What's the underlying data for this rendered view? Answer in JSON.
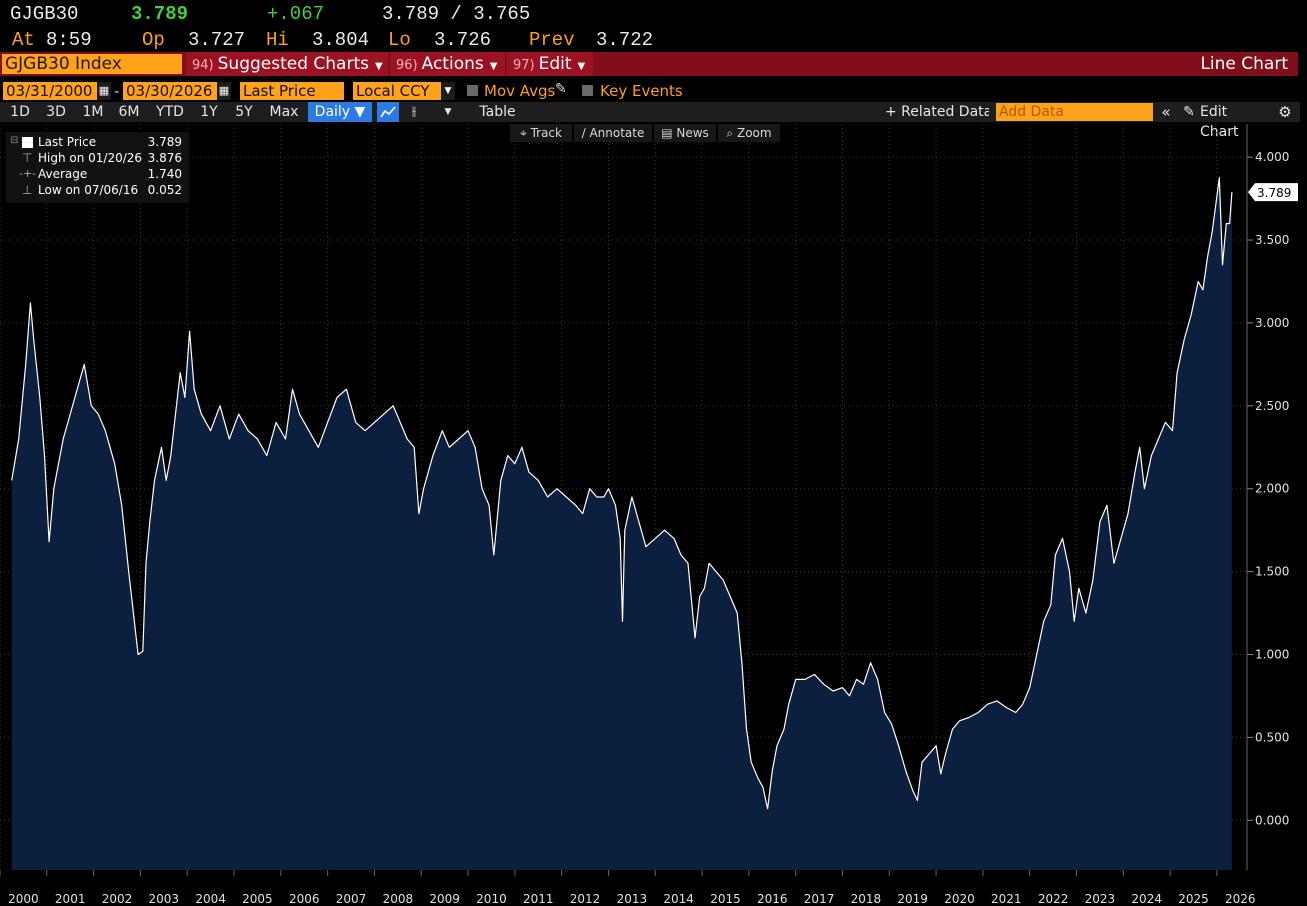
{
  "header": {
    "ticker": "GJGB30",
    "last": "3.789",
    "change": "+.067",
    "bid_ask": "3.789 / 3.765",
    "time_label": "At",
    "time": "8:59",
    "open_label": "Op",
    "open": "3.727",
    "high_label": "Hi",
    "high": "3.804",
    "low_label": "Lo",
    "low": "3.726",
    "prev_label": "Prev",
    "prev": "3.722"
  },
  "command_bar": {
    "security": "GJGB30 Index",
    "menus": [
      {
        "num": "94)",
        "label": "Suggested Charts"
      },
      {
        "num": "96)",
        "label": "Actions"
      },
      {
        "num": "97)",
        "label": "Edit"
      }
    ],
    "view_label": "Line Chart"
  },
  "date_row": {
    "start": "03/31/2000",
    "end": "03/30/2026",
    "field": "Last Price",
    "currency": "Local CCY",
    "mov_avgs": "Mov Avgs",
    "key_events": "Key Events"
  },
  "toolbar": {
    "ranges": [
      "1D",
      "3D",
      "1M",
      "6M",
      "YTD",
      "1Y",
      "5Y",
      "Max"
    ],
    "frequency": "Daily ▼",
    "table": "Table",
    "related": "+ Related Data",
    "add_data_placeholder": "Add Data",
    "edit_chart": "Edit Chart"
  },
  "chart_tools": [
    "Track",
    "Annotate",
    "News",
    "Zoom"
  ],
  "legend": {
    "rows": [
      {
        "name": "Last Price",
        "value": "3.789"
      },
      {
        "name": "High on 01/20/26",
        "value": "3.876"
      },
      {
        "name": "Average",
        "value": "1.740"
      },
      {
        "name": "Low on 07/06/16",
        "value": "0.052"
      }
    ]
  },
  "colors": {
    "background": "#000000",
    "area_fill": "#0b1f3f",
    "line": "#ffffff",
    "accent": "#ffa21b",
    "command_bar": "#7f0f1b"
  },
  "chart_data": {
    "type": "area",
    "ylim": [
      -0.3,
      4.2
    ],
    "xlim": [
      2000.0,
      2026.6
    ],
    "y_ticks": [
      "0.000",
      "0.500",
      "1.000",
      "1.500",
      "2.000",
      "2.500",
      "3.000",
      "3.500",
      "4.000"
    ],
    "x_ticks": [
      "2000",
      "2001",
      "2002",
      "2003",
      "2004",
      "2005",
      "2006",
      "2007",
      "2008",
      "2009",
      "2010",
      "2011",
      "2012",
      "2013",
      "2014",
      "2015",
      "2016",
      "2017",
      "2018",
      "2019",
      "2020",
      "2021",
      "2022",
      "2023",
      "2024",
      "2025",
      "2026"
    ],
    "last_value_label": "3.789",
    "grid": "horizontal and vertical dotted",
    "legend_position": "top-left",
    "series": [
      {
        "name": "Last Price",
        "points": [
          [
            2000.25,
            2.05
          ],
          [
            2000.4,
            2.3
          ],
          [
            2000.55,
            2.75
          ],
          [
            2000.65,
            3.12
          ],
          [
            2000.72,
            2.9
          ],
          [
            2000.85,
            2.55
          ],
          [
            2000.95,
            2.2
          ],
          [
            2001.05,
            1.68
          ],
          [
            2001.15,
            2.0
          ],
          [
            2001.35,
            2.3
          ],
          [
            2001.6,
            2.55
          ],
          [
            2001.8,
            2.75
          ],
          [
            2001.95,
            2.5
          ],
          [
            2002.1,
            2.45
          ],
          [
            2002.25,
            2.35
          ],
          [
            2002.45,
            2.15
          ],
          [
            2002.6,
            1.9
          ],
          [
            2002.75,
            1.5
          ],
          [
            2002.85,
            1.25
          ],
          [
            2002.95,
            1.0
          ],
          [
            2003.05,
            1.02
          ],
          [
            2003.12,
            1.55
          ],
          [
            2003.2,
            1.8
          ],
          [
            2003.3,
            2.05
          ],
          [
            2003.45,
            2.25
          ],
          [
            2003.55,
            2.05
          ],
          [
            2003.65,
            2.2
          ],
          [
            2003.75,
            2.45
          ],
          [
            2003.85,
            2.7
          ],
          [
            2003.95,
            2.55
          ],
          [
            2004.05,
            2.95
          ],
          [
            2004.15,
            2.6
          ],
          [
            2004.3,
            2.45
          ],
          [
            2004.5,
            2.35
          ],
          [
            2004.7,
            2.5
          ],
          [
            2004.9,
            2.3
          ],
          [
            2005.1,
            2.45
          ],
          [
            2005.3,
            2.35
          ],
          [
            2005.5,
            2.3
          ],
          [
            2005.7,
            2.2
          ],
          [
            2005.9,
            2.4
          ],
          [
            2006.1,
            2.3
          ],
          [
            2006.25,
            2.6
          ],
          [
            2006.4,
            2.45
          ],
          [
            2006.6,
            2.35
          ],
          [
            2006.8,
            2.25
          ],
          [
            2007.0,
            2.4
          ],
          [
            2007.2,
            2.55
          ],
          [
            2007.4,
            2.6
          ],
          [
            2007.6,
            2.4
          ],
          [
            2007.8,
            2.35
          ],
          [
            2008.0,
            2.4
          ],
          [
            2008.2,
            2.45
          ],
          [
            2008.4,
            2.5
          ],
          [
            2008.55,
            2.4
          ],
          [
            2008.7,
            2.3
          ],
          [
            2008.85,
            2.25
          ],
          [
            2008.95,
            1.85
          ],
          [
            2009.05,
            2.0
          ],
          [
            2009.25,
            2.2
          ],
          [
            2009.45,
            2.35
          ],
          [
            2009.6,
            2.25
          ],
          [
            2009.8,
            2.3
          ],
          [
            2010.0,
            2.35
          ],
          [
            2010.15,
            2.25
          ],
          [
            2010.3,
            2.0
          ],
          [
            2010.45,
            1.9
          ],
          [
            2010.55,
            1.6
          ],
          [
            2010.7,
            2.05
          ],
          [
            2010.85,
            2.2
          ],
          [
            2011.0,
            2.15
          ],
          [
            2011.15,
            2.25
          ],
          [
            2011.3,
            2.1
          ],
          [
            2011.5,
            2.05
          ],
          [
            2011.7,
            1.95
          ],
          [
            2011.9,
            2.0
          ],
          [
            2012.1,
            1.95
          ],
          [
            2012.3,
            1.9
          ],
          [
            2012.45,
            1.85
          ],
          [
            2012.6,
            2.0
          ],
          [
            2012.75,
            1.95
          ],
          [
            2012.9,
            1.95
          ],
          [
            2013.0,
            2.0
          ],
          [
            2013.15,
            1.9
          ],
          [
            2013.25,
            1.7
          ],
          [
            2013.3,
            1.2
          ],
          [
            2013.35,
            1.75
          ],
          [
            2013.5,
            1.95
          ],
          [
            2013.65,
            1.8
          ],
          [
            2013.8,
            1.65
          ],
          [
            2014.0,
            1.7
          ],
          [
            2014.2,
            1.75
          ],
          [
            2014.4,
            1.7
          ],
          [
            2014.55,
            1.6
          ],
          [
            2014.7,
            1.55
          ],
          [
            2014.85,
            1.1
          ],
          [
            2014.95,
            1.35
          ],
          [
            2015.05,
            1.4
          ],
          [
            2015.15,
            1.55
          ],
          [
            2015.3,
            1.5
          ],
          [
            2015.45,
            1.45
          ],
          [
            2015.6,
            1.35
          ],
          [
            2015.75,
            1.25
          ],
          [
            2015.85,
            0.95
          ],
          [
            2015.95,
            0.55
          ],
          [
            2016.05,
            0.35
          ],
          [
            2016.2,
            0.25
          ],
          [
            2016.3,
            0.2
          ],
          [
            2016.4,
            0.07
          ],
          [
            2016.5,
            0.3
          ],
          [
            2016.6,
            0.45
          ],
          [
            2016.75,
            0.55
          ],
          [
            2016.85,
            0.7
          ],
          [
            2017.0,
            0.85
          ],
          [
            2017.2,
            0.85
          ],
          [
            2017.4,
            0.88
          ],
          [
            2017.6,
            0.82
          ],
          [
            2017.8,
            0.78
          ],
          [
            2018.0,
            0.8
          ],
          [
            2018.15,
            0.75
          ],
          [
            2018.3,
            0.85
          ],
          [
            2018.45,
            0.82
          ],
          [
            2018.6,
            0.95
          ],
          [
            2018.75,
            0.85
          ],
          [
            2018.9,
            0.65
          ],
          [
            2019.05,
            0.58
          ],
          [
            2019.2,
            0.45
          ],
          [
            2019.35,
            0.3
          ],
          [
            2019.5,
            0.18
          ],
          [
            2019.6,
            0.12
          ],
          [
            2019.7,
            0.35
          ],
          [
            2019.85,
            0.4
          ],
          [
            2020.0,
            0.45
          ],
          [
            2020.1,
            0.28
          ],
          [
            2020.2,
            0.4
          ],
          [
            2020.35,
            0.55
          ],
          [
            2020.5,
            0.6
          ],
          [
            2020.7,
            0.62
          ],
          [
            2020.9,
            0.65
          ],
          [
            2021.1,
            0.7
          ],
          [
            2021.3,
            0.72
          ],
          [
            2021.5,
            0.68
          ],
          [
            2021.7,
            0.65
          ],
          [
            2021.85,
            0.7
          ],
          [
            2022.0,
            0.8
          ],
          [
            2022.15,
            1.0
          ],
          [
            2022.3,
            1.2
          ],
          [
            2022.45,
            1.3
          ],
          [
            2022.55,
            1.6
          ],
          [
            2022.7,
            1.7
          ],
          [
            2022.85,
            1.5
          ],
          [
            2022.95,
            1.2
          ],
          [
            2023.05,
            1.4
          ],
          [
            2023.2,
            1.25
          ],
          [
            2023.35,
            1.45
          ],
          [
            2023.5,
            1.8
          ],
          [
            2023.65,
            1.9
          ],
          [
            2023.8,
            1.55
          ],
          [
            2023.95,
            1.7
          ],
          [
            2024.1,
            1.85
          ],
          [
            2024.25,
            2.1
          ],
          [
            2024.35,
            2.25
          ],
          [
            2024.45,
            2.0
          ],
          [
            2024.6,
            2.2
          ],
          [
            2024.75,
            2.3
          ],
          [
            2024.9,
            2.4
          ],
          [
            2025.05,
            2.35
          ],
          [
            2025.15,
            2.7
          ],
          [
            2025.3,
            2.9
          ],
          [
            2025.45,
            3.05
          ],
          [
            2025.6,
            3.25
          ],
          [
            2025.7,
            3.2
          ],
          [
            2025.8,
            3.4
          ],
          [
            2025.9,
            3.55
          ],
          [
            2025.97,
            3.7
          ],
          [
            2026.05,
            3.876
          ],
          [
            2026.12,
            3.35
          ],
          [
            2026.2,
            3.6
          ],
          [
            2026.27,
            3.6
          ],
          [
            2026.32,
            3.789
          ]
        ]
      }
    ]
  }
}
